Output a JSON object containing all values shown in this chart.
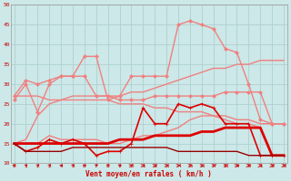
{
  "xlabel": "Vent moyen/en rafales ( km/h )",
  "bg_color": "#cce8e8",
  "grid_color": "#b0d0d0",
  "x": [
    0,
    1,
    2,
    3,
    4,
    5,
    6,
    7,
    8,
    9,
    10,
    11,
    12,
    13,
    14,
    15,
    16,
    17,
    18,
    19,
    20,
    21,
    22,
    23
  ],
  "lines": [
    {
      "y": [
        26,
        30,
        23,
        30,
        32,
        32,
        37,
        37,
        26,
        27,
        32,
        32,
        32,
        32,
        45,
        46,
        45,
        44,
        39,
        38,
        30,
        21,
        20,
        20
      ],
      "color": "#f08080",
      "lw": 1.0,
      "marker": "D",
      "ms": 2.0
    },
    {
      "y": [
        15,
        16,
        22,
        25,
        26,
        27,
        27,
        27,
        27,
        27,
        28,
        28,
        29,
        30,
        31,
        32,
        33,
        34,
        34,
        35,
        35,
        36,
        36,
        36
      ],
      "color": "#f08080",
      "lw": 1.0,
      "marker": null,
      "ms": 0
    },
    {
      "y": [
        27,
        31,
        30,
        31,
        32,
        32,
        32,
        27,
        27,
        26,
        26,
        26,
        27,
        27,
        27,
        27,
        27,
        27,
        28,
        28,
        28,
        28,
        20,
        20
      ],
      "color": "#f08080",
      "lw": 1.0,
      "marker": "D",
      "ms": 2.0
    },
    {
      "y": [
        27,
        27,
        27,
        26,
        26,
        26,
        26,
        26,
        26,
        25,
        25,
        25,
        24,
        24,
        23,
        23,
        23,
        22,
        22,
        21,
        21,
        20,
        20,
        20
      ],
      "color": "#f08080",
      "lw": 1.0,
      "marker": null,
      "ms": 0
    },
    {
      "y": [
        15,
        15,
        15,
        17,
        16,
        16,
        16,
        16,
        15,
        15,
        16,
        17,
        17,
        18,
        19,
        21,
        22,
        22,
        21,
        20,
        20,
        19,
        12,
        12
      ],
      "color": "#f08080",
      "lw": 1.0,
      "marker": null,
      "ms": 0
    },
    {
      "y": [
        15,
        13,
        14,
        16,
        15,
        16,
        15,
        12,
        13,
        13,
        15,
        24,
        20,
        20,
        25,
        24,
        25,
        24,
        20,
        20,
        20,
        12,
        12,
        12
      ],
      "color": "#dd0000",
      "lw": 1.2,
      "marker": "+",
      "ms": 3.5
    },
    {
      "y": [
        15,
        15,
        15,
        15,
        15,
        15,
        15,
        15,
        15,
        16,
        16,
        16,
        17,
        17,
        17,
        17,
        18,
        18,
        19,
        19,
        19,
        19,
        12,
        12
      ],
      "color": "#dd0000",
      "lw": 2.0,
      "marker": null,
      "ms": 0
    },
    {
      "y": [
        15,
        13,
        13,
        13,
        13,
        14,
        14,
        14,
        14,
        14,
        14,
        14,
        14,
        14,
        13,
        13,
        13,
        13,
        13,
        13,
        12,
        12,
        12,
        12
      ],
      "color": "#990000",
      "lw": 1.0,
      "marker": null,
      "ms": 0
    }
  ],
  "ylim": [
    10,
    50
  ],
  "yticks": [
    10,
    15,
    20,
    25,
    30,
    35,
    40,
    45,
    50
  ],
  "xlim": [
    -0.3,
    23.3
  ],
  "xticks": [
    0,
    1,
    2,
    3,
    4,
    5,
    6,
    7,
    8,
    9,
    10,
    11,
    12,
    13,
    14,
    15,
    16,
    17,
    18,
    19,
    20,
    21,
    22,
    23
  ]
}
